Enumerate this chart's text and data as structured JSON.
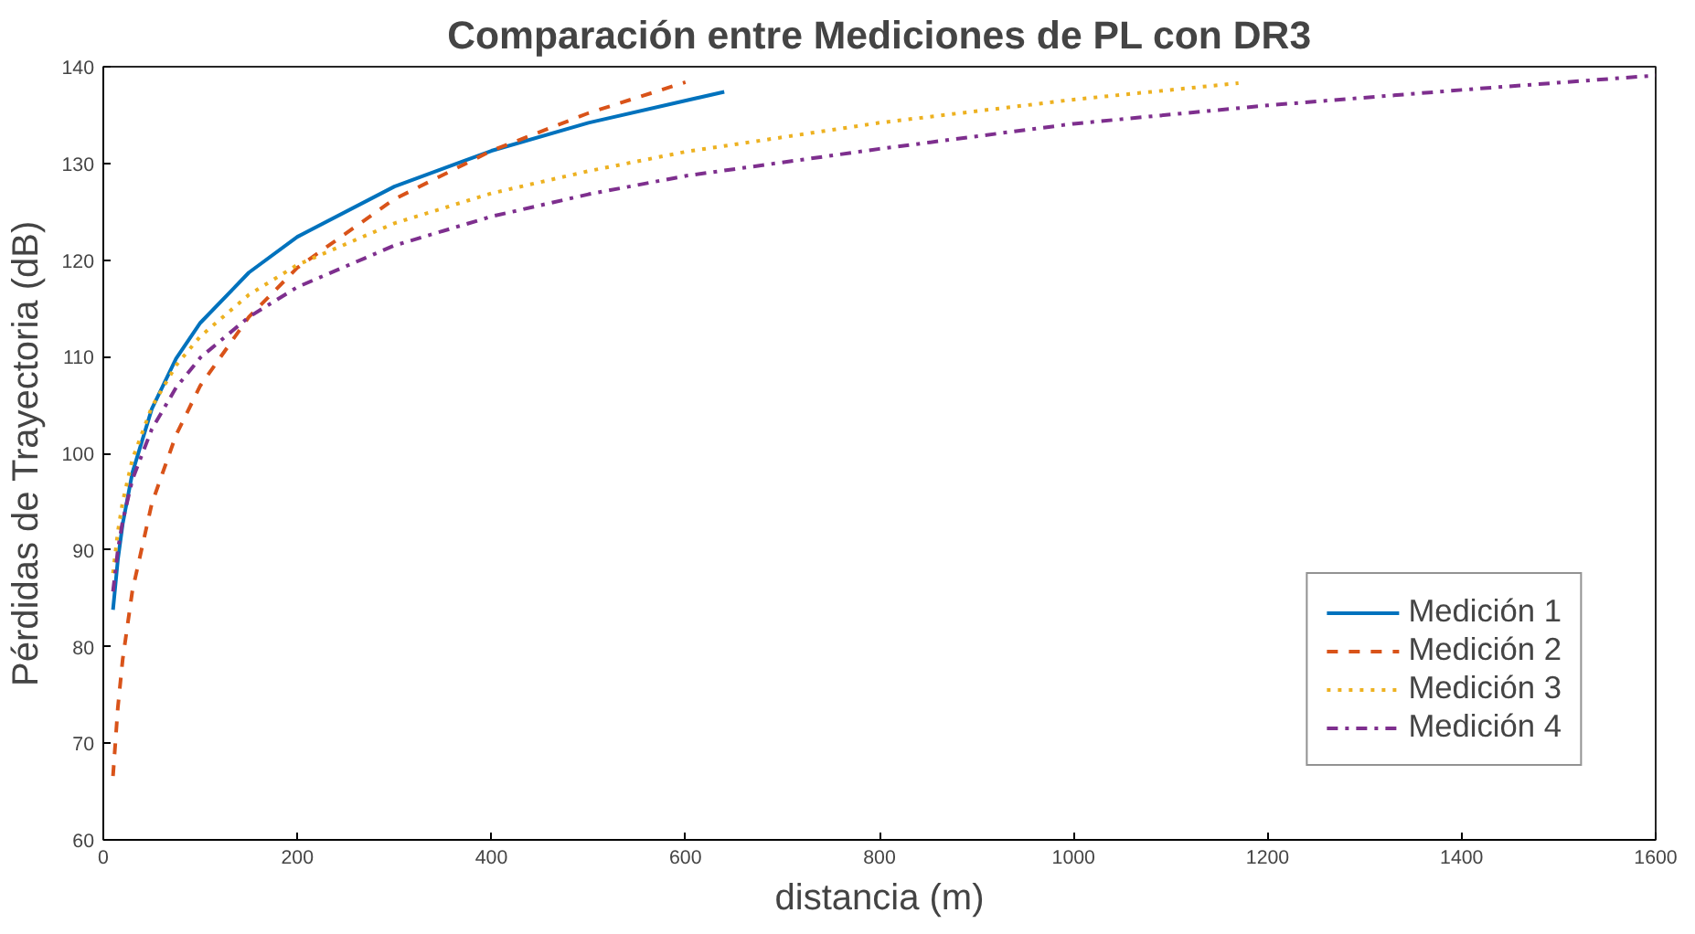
{
  "chart_data": {
    "type": "line",
    "title": "Comparación entre Mediciones de PL con DR3",
    "xlabel": "distancia (m)",
    "ylabel": "Pérdidas de Trayectoria (dB)",
    "xlim": [
      0,
      1600
    ],
    "xticks": [
      0,
      200,
      400,
      600,
      800,
      1000,
      1200,
      1400,
      1600
    ],
    "ylim": [
      60,
      140
    ],
    "yticks": [
      60,
      70,
      80,
      90,
      100,
      110,
      120,
      130,
      140
    ],
    "grid": false,
    "legend": "bottom right",
    "marker": "none",
    "series": [
      {
        "name": "Medición 1",
        "color": "#0072bd",
        "line_style": "solid",
        "x": [
          10,
          15,
          20,
          30,
          50,
          75,
          100,
          150,
          200,
          300,
          400,
          500,
          640
        ],
        "values": [
          83.8,
          89.0,
          92.7,
          98.0,
          104.6,
          109.8,
          113.5,
          118.7,
          122.4,
          127.6,
          131.3,
          134.2,
          137.4
        ]
      },
      {
        "name": "Medición 2",
        "color": "#d95319",
        "line_style": "dashed",
        "x": [
          10,
          15,
          20,
          30,
          50,
          75,
          100,
          150,
          200,
          300,
          400,
          500,
          600
        ],
        "values": [
          66.6,
          73.7,
          78.7,
          85.8,
          94.8,
          101.9,
          107.0,
          114.1,
          119.2,
          126.3,
          131.3,
          135.2,
          138.4
        ]
      },
      {
        "name": "Medición 3",
        "color": "#edb120",
        "line_style": "dotted",
        "x": [
          10,
          15,
          20,
          30,
          50,
          75,
          100,
          150,
          200,
          300,
          400,
          500,
          600,
          800,
          1000,
          1170
        ],
        "values": [
          87.6,
          91.9,
          95.0,
          99.4,
          104.8,
          109.1,
          112.1,
          116.4,
          119.5,
          123.8,
          126.9,
          129.2,
          131.2,
          134.2,
          136.6,
          138.3
        ]
      },
      {
        "name": "Medición 4",
        "color": "#7e2f8e",
        "line_style": "dashdot",
        "x": [
          10,
          15,
          20,
          30,
          50,
          75,
          100,
          150,
          200,
          300,
          400,
          500,
          600,
          800,
          1000,
          1200,
          1400,
          1600
        ],
        "values": [
          85.7,
          90.0,
          93.0,
          97.3,
          102.5,
          106.8,
          109.9,
          114.1,
          117.2,
          121.5,
          124.5,
          126.8,
          128.7,
          131.5,
          134.1,
          136.0,
          137.6,
          139.1
        ]
      }
    ]
  }
}
